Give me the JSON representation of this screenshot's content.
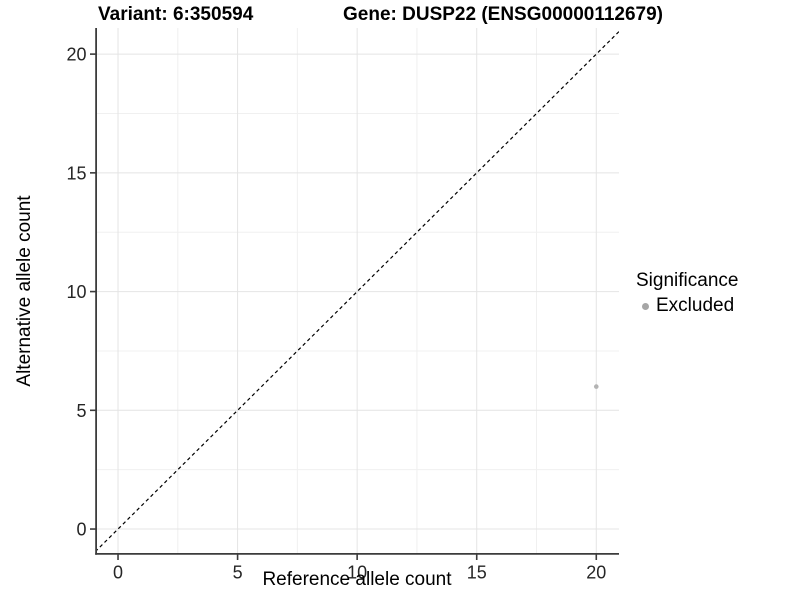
{
  "chart_data": {
    "type": "scatter",
    "title_left": "Variant: 6:350594",
    "title_right": "Gene: DUSP22 (ENSG00000112679)",
    "xlabel": "Reference allele count",
    "ylabel": "Alternative allele count",
    "xlim": [
      -0.9,
      20.95
    ],
    "ylim": [
      -1.03,
      21.1
    ],
    "x_ticks": [
      0,
      5,
      10,
      15,
      20
    ],
    "y_ticks": [
      0,
      5,
      10,
      15,
      20
    ],
    "x_minor_ticks": [
      2.5,
      7.5,
      12.5,
      17.5
    ],
    "y_minor_ticks": [
      2.5,
      7.5,
      12.5,
      17.5
    ],
    "grid": "major+minor",
    "identity_line": {
      "equation": "y = x",
      "style": "dashed",
      "color": "#000000"
    },
    "series": [
      {
        "name": "Excluded",
        "color": "#b3b3b3",
        "point_radius": 2.3,
        "points": [
          [
            20,
            6
          ]
        ]
      }
    ],
    "legend": {
      "title": "Significance",
      "position": "right",
      "items": [
        {
          "label": "Excluded",
          "color": "#a6a6a6"
        }
      ]
    },
    "colors": {
      "grid_major": "#e4e4e4",
      "grid_minor": "#f0f0f0",
      "axis": "#3c3c3c",
      "tick_text": "#262626"
    }
  }
}
